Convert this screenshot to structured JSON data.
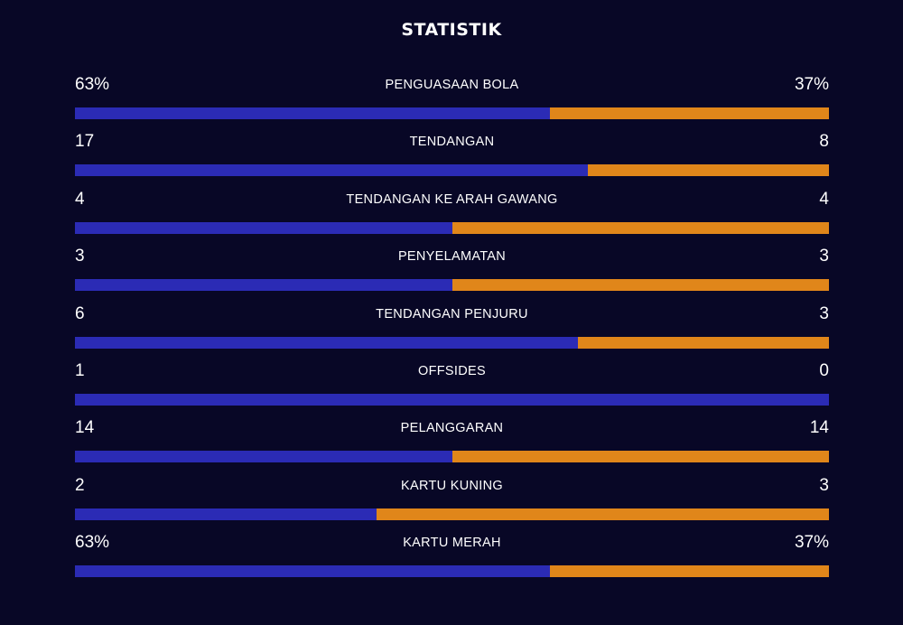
{
  "title": "STATISTIK",
  "colors": {
    "background": "#080726",
    "home": "#2b2bb5",
    "away": "#e0861a",
    "text": "#ffffff"
  },
  "stats": [
    {
      "label": "PENGUASAAN BOLA",
      "home": "63%",
      "away": "37%",
      "home_share": 0.63
    },
    {
      "label": "TENDANGAN",
      "home": "17",
      "away": "8",
      "home_share": 0.68
    },
    {
      "label": "TENDANGAN KE ARAH GAWANG",
      "home": "4",
      "away": "4",
      "home_share": 0.5
    },
    {
      "label": "PENYELAMATAN",
      "home": "3",
      "away": "3",
      "home_share": 0.5
    },
    {
      "label": "TENDANGAN PENJURU",
      "home": "6",
      "away": "3",
      "home_share": 0.667
    },
    {
      "label": "OFFSIDES",
      "home": "1",
      "away": "0",
      "home_share": 1.0
    },
    {
      "label": "PELANGGARAN",
      "home": "14",
      "away": "14",
      "home_share": 0.5
    },
    {
      "label": "KARTU KUNING",
      "home": "2",
      "away": "3",
      "home_share": 0.4
    },
    {
      "label": "KARTU MERAH",
      "home": "63%",
      "away": "37%",
      "home_share": 0.63
    }
  ]
}
